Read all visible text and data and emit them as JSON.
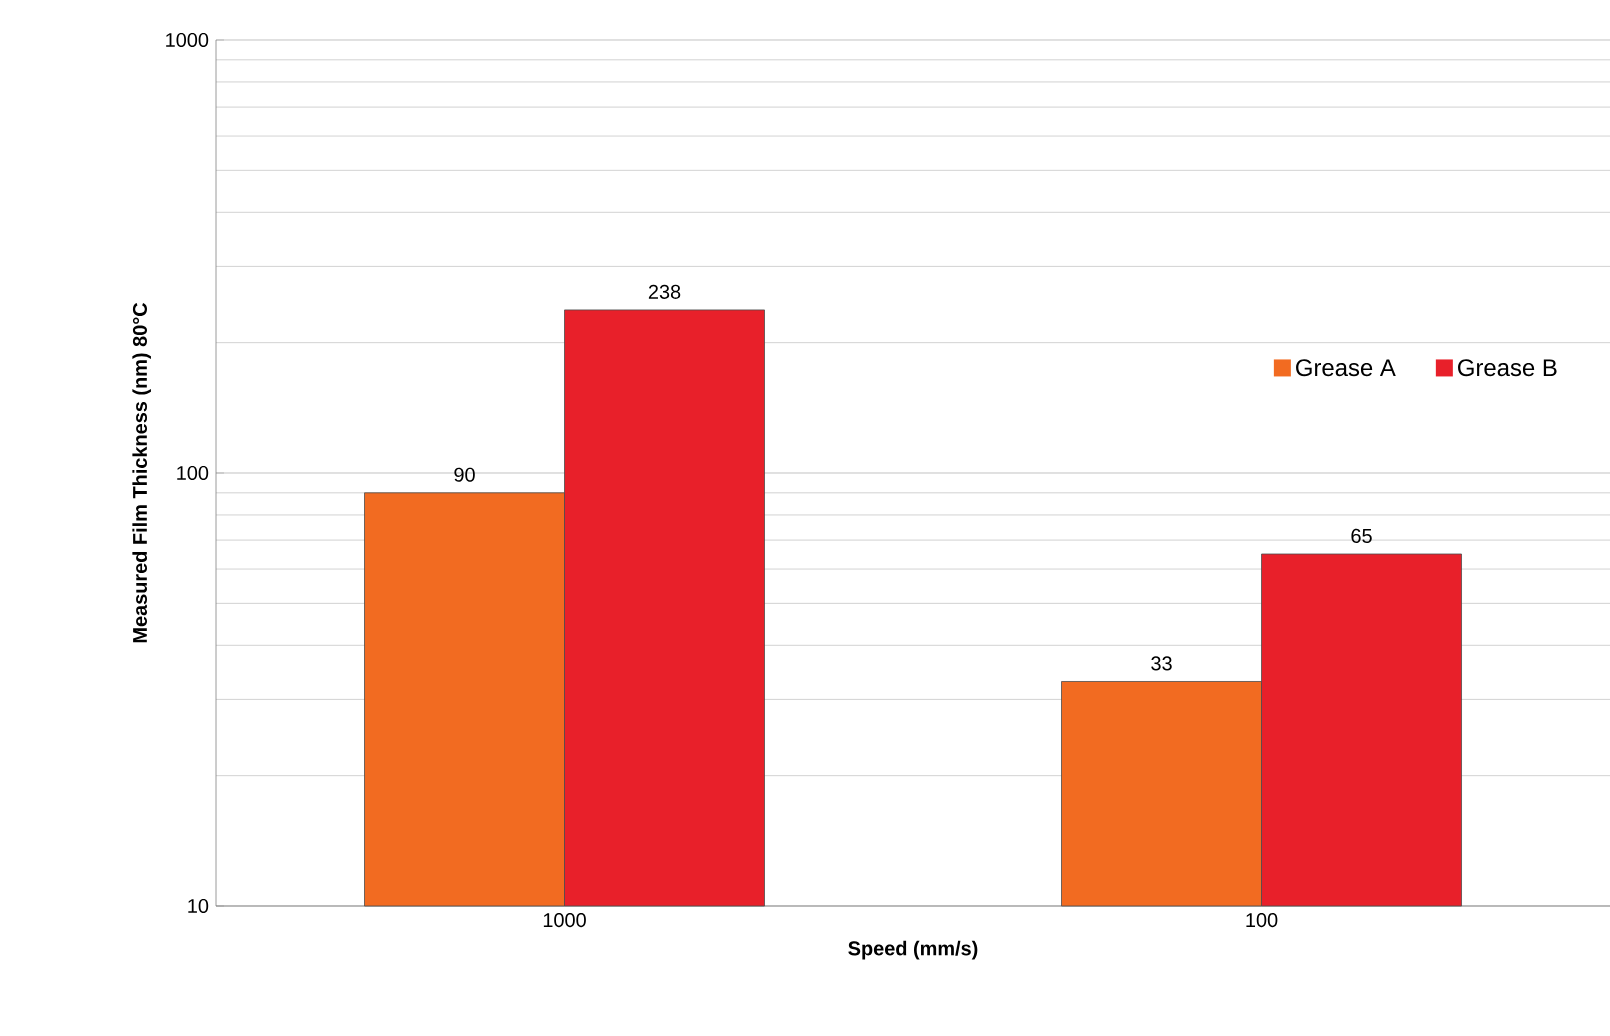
{
  "chart_data": {
    "type": "bar",
    "xlabel": "Speed (mm/s)",
    "ylabel": "Measured Film Thickness (nm) 80°C",
    "categories": [
      "1000",
      "100"
    ],
    "series": [
      {
        "name": "Grease A",
        "color": "#f26b21",
        "values": [
          90,
          33
        ]
      },
      {
        "name": "Grease B",
        "color": "#e8202a",
        "values": [
          238,
          65
        ]
      }
    ],
    "log": "y",
    "ylim": [
      10,
      1000
    ],
    "yticks": [
      10,
      100,
      1000
    ],
    "grid": "y",
    "legend": "right",
    "data_labels": true
  }
}
